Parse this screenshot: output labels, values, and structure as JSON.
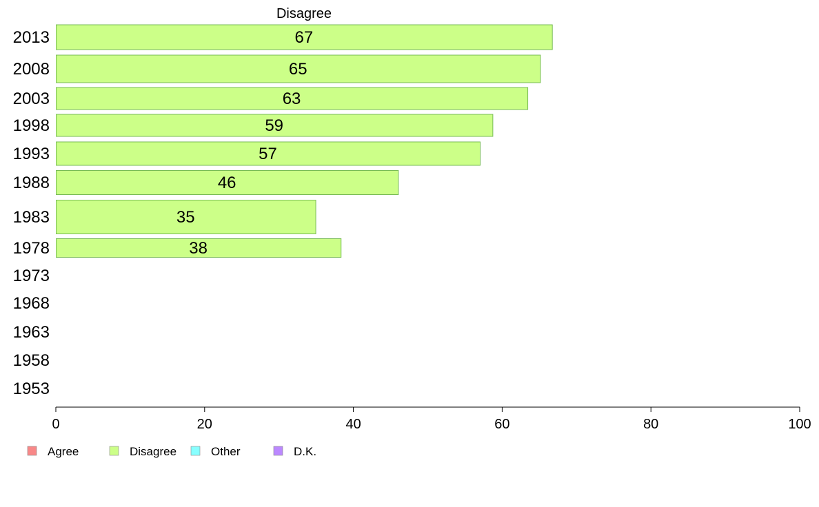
{
  "chart_data": {
    "type": "bar",
    "orientation": "horizontal",
    "title": "Disagree",
    "xlabel": "",
    "ylabel": "",
    "xlim": [
      0,
      100
    ],
    "x_ticks": [
      "0",
      "20",
      "40",
      "60",
      "80",
      "100"
    ],
    "grid": false,
    "categories": [
      "2013",
      "2008",
      "2003",
      "1998",
      "1993",
      "1988",
      "1983",
      "1978",
      "1973",
      "1968",
      "1963",
      "1958",
      "1953"
    ],
    "series": [
      {
        "name": "Disagree",
        "color": "#ccff88",
        "values": [
          66.7,
          65.1,
          63.4,
          58.7,
          57.0,
          46.0,
          34.9,
          38.3,
          null,
          null,
          null,
          null,
          null
        ],
        "labels": [
          "67",
          "65",
          "63",
          "59",
          "57",
          "46",
          "35",
          "38",
          "",
          "",
          "",
          "",
          ""
        ]
      }
    ],
    "legend": {
      "placement": "bottom-left",
      "items": [
        {
          "label": "Agree",
          "color": "#f88888"
        },
        {
          "label": "Disagree",
          "color": "#ccff88"
        },
        {
          "label": "Other",
          "color": "#88ffff"
        },
        {
          "label": "D.K.",
          "color": "#bb88ff"
        }
      ]
    },
    "bar_stroke_color": "#77bb55"
  }
}
